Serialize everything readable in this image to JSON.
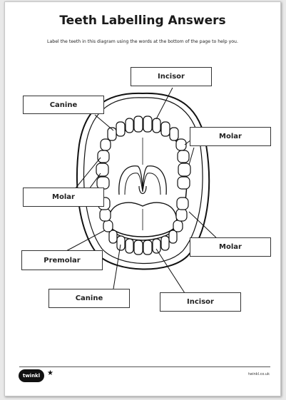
{
  "title": "Teeth Labelling Answers",
  "instructions": "Label the teeth in this diagram using the words at the bottom of the page to help you.",
  "labels": {
    "incisor_top": "Incisor",
    "canine_top": "Canine",
    "molar_top_right": "Molar",
    "molar_left": "Molar",
    "molar_bottom_right": "Molar",
    "premolar": "Premolar",
    "canine_bottom": "Canine",
    "incisor_bottom": "Incisor"
  },
  "footer": {
    "logo_text": "twinkl",
    "star": "★",
    "website": "twinkl.co.uk"
  }
}
